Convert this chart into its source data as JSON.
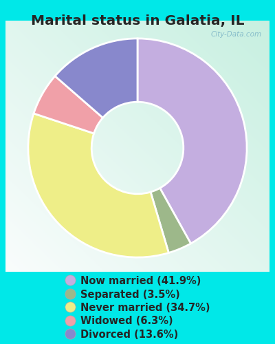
{
  "title": "Marital status in Galatia, IL",
  "slices": [
    41.9,
    3.5,
    34.7,
    6.3,
    13.6
  ],
  "labels": [
    "Now married (41.9%)",
    "Separated (3.5%)",
    "Never married (34.7%)",
    "Widowed (6.3%)",
    "Divorced (13.6%)"
  ],
  "colors": [
    "#c4aee0",
    "#9db88a",
    "#eeee88",
    "#f0a0a8",
    "#8888cc"
  ],
  "bg_outer": "#00e8e8",
  "bg_chart_tl": "#c8e8d8",
  "bg_chart_br": "#eef8f0",
  "title_color": "#252525",
  "title_fontsize": 14.5,
  "watermark": "City-Data.com",
  "legend_fontsize": 10.5,
  "donut_width": 0.58,
  "start_angle": 90,
  "legend_order": [
    0,
    1,
    2,
    3,
    4
  ]
}
